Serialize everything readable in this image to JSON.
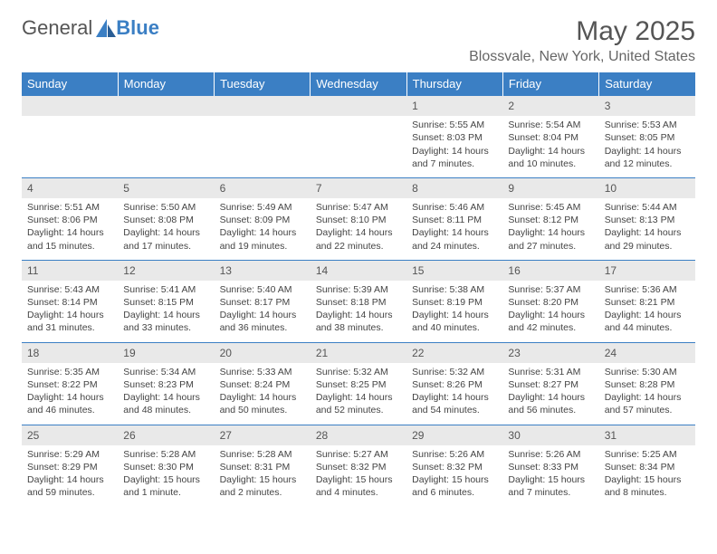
{
  "brand": {
    "text1": "General",
    "text2": "Blue"
  },
  "title": "May 2025",
  "location": "Blossvale, New York, United States",
  "colors": {
    "header_bg": "#3b7fc4",
    "header_text": "#ffffff",
    "daynum_bg": "#e9e9e9",
    "body_text": "#444444",
    "rule": "#3b7fc4"
  },
  "fonts": {
    "title_size": 30,
    "location_size": 16,
    "th_size": 13,
    "cell_size": 10.5
  },
  "dayNames": [
    "Sunday",
    "Monday",
    "Tuesday",
    "Wednesday",
    "Thursday",
    "Friday",
    "Saturday"
  ],
  "weeks": [
    [
      null,
      null,
      null,
      null,
      {
        "n": "1",
        "sr": "5:55 AM",
        "ss": "8:03 PM",
        "dl": "14 hours and 7 minutes."
      },
      {
        "n": "2",
        "sr": "5:54 AM",
        "ss": "8:04 PM",
        "dl": "14 hours and 10 minutes."
      },
      {
        "n": "3",
        "sr": "5:53 AM",
        "ss": "8:05 PM",
        "dl": "14 hours and 12 minutes."
      }
    ],
    [
      {
        "n": "4",
        "sr": "5:51 AM",
        "ss": "8:06 PM",
        "dl": "14 hours and 15 minutes."
      },
      {
        "n": "5",
        "sr": "5:50 AM",
        "ss": "8:08 PM",
        "dl": "14 hours and 17 minutes."
      },
      {
        "n": "6",
        "sr": "5:49 AM",
        "ss": "8:09 PM",
        "dl": "14 hours and 19 minutes."
      },
      {
        "n": "7",
        "sr": "5:47 AM",
        "ss": "8:10 PM",
        "dl": "14 hours and 22 minutes."
      },
      {
        "n": "8",
        "sr": "5:46 AM",
        "ss": "8:11 PM",
        "dl": "14 hours and 24 minutes."
      },
      {
        "n": "9",
        "sr": "5:45 AM",
        "ss": "8:12 PM",
        "dl": "14 hours and 27 minutes."
      },
      {
        "n": "10",
        "sr": "5:44 AM",
        "ss": "8:13 PM",
        "dl": "14 hours and 29 minutes."
      }
    ],
    [
      {
        "n": "11",
        "sr": "5:43 AM",
        "ss": "8:14 PM",
        "dl": "14 hours and 31 minutes."
      },
      {
        "n": "12",
        "sr": "5:41 AM",
        "ss": "8:15 PM",
        "dl": "14 hours and 33 minutes."
      },
      {
        "n": "13",
        "sr": "5:40 AM",
        "ss": "8:17 PM",
        "dl": "14 hours and 36 minutes."
      },
      {
        "n": "14",
        "sr": "5:39 AM",
        "ss": "8:18 PM",
        "dl": "14 hours and 38 minutes."
      },
      {
        "n": "15",
        "sr": "5:38 AM",
        "ss": "8:19 PM",
        "dl": "14 hours and 40 minutes."
      },
      {
        "n": "16",
        "sr": "5:37 AM",
        "ss": "8:20 PM",
        "dl": "14 hours and 42 minutes."
      },
      {
        "n": "17",
        "sr": "5:36 AM",
        "ss": "8:21 PM",
        "dl": "14 hours and 44 minutes."
      }
    ],
    [
      {
        "n": "18",
        "sr": "5:35 AM",
        "ss": "8:22 PM",
        "dl": "14 hours and 46 minutes."
      },
      {
        "n": "19",
        "sr": "5:34 AM",
        "ss": "8:23 PM",
        "dl": "14 hours and 48 minutes."
      },
      {
        "n": "20",
        "sr": "5:33 AM",
        "ss": "8:24 PM",
        "dl": "14 hours and 50 minutes."
      },
      {
        "n": "21",
        "sr": "5:32 AM",
        "ss": "8:25 PM",
        "dl": "14 hours and 52 minutes."
      },
      {
        "n": "22",
        "sr": "5:32 AM",
        "ss": "8:26 PM",
        "dl": "14 hours and 54 minutes."
      },
      {
        "n": "23",
        "sr": "5:31 AM",
        "ss": "8:27 PM",
        "dl": "14 hours and 56 minutes."
      },
      {
        "n": "24",
        "sr": "5:30 AM",
        "ss": "8:28 PM",
        "dl": "14 hours and 57 minutes."
      }
    ],
    [
      {
        "n": "25",
        "sr": "5:29 AM",
        "ss": "8:29 PM",
        "dl": "14 hours and 59 minutes."
      },
      {
        "n": "26",
        "sr": "5:28 AM",
        "ss": "8:30 PM",
        "dl": "15 hours and 1 minute."
      },
      {
        "n": "27",
        "sr": "5:28 AM",
        "ss": "8:31 PM",
        "dl": "15 hours and 2 minutes."
      },
      {
        "n": "28",
        "sr": "5:27 AM",
        "ss": "8:32 PM",
        "dl": "15 hours and 4 minutes."
      },
      {
        "n": "29",
        "sr": "5:26 AM",
        "ss": "8:32 PM",
        "dl": "15 hours and 6 minutes."
      },
      {
        "n": "30",
        "sr": "5:26 AM",
        "ss": "8:33 PM",
        "dl": "15 hours and 7 minutes."
      },
      {
        "n": "31",
        "sr": "5:25 AM",
        "ss": "8:34 PM",
        "dl": "15 hours and 8 minutes."
      }
    ]
  ],
  "labels": {
    "sunrise": "Sunrise: ",
    "sunset": "Sunset: ",
    "daylight": "Daylight: "
  }
}
